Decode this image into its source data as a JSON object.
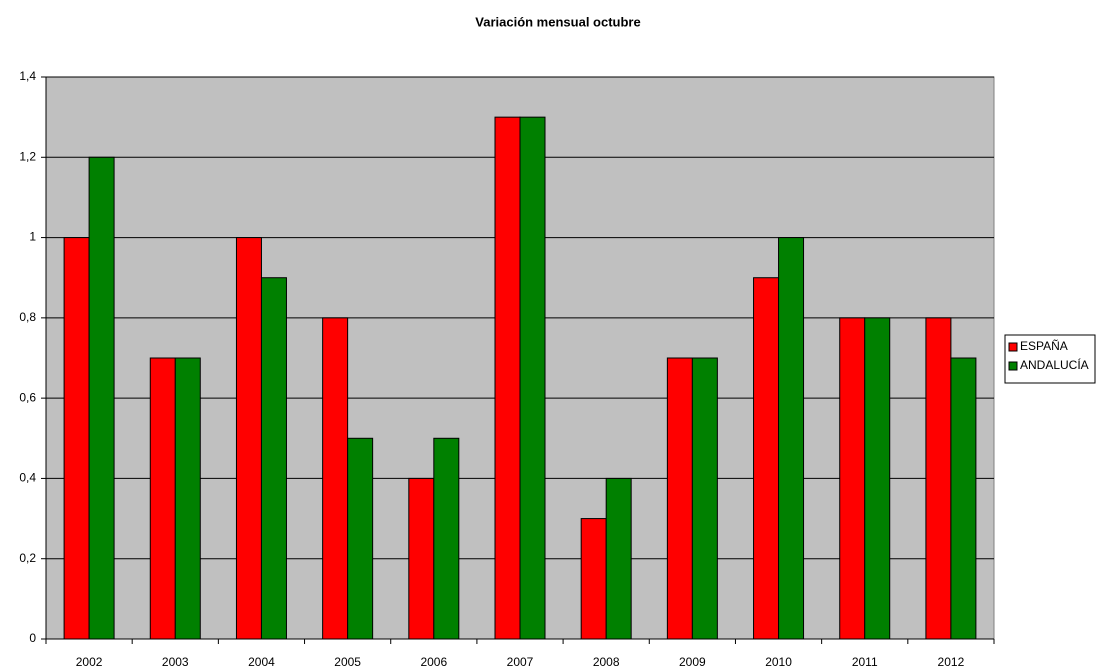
{
  "chart_data": {
    "type": "bar",
    "title": "Variación mensual octubre",
    "categories": [
      "2002",
      "2003",
      "2004",
      "2005",
      "2006",
      "2007",
      "2008",
      "2009",
      "2010",
      "2011",
      "2012"
    ],
    "series": [
      {
        "name": "ESPAÑA",
        "color": "#ff0000",
        "values": [
          1,
          0.7,
          1,
          0.8,
          0.4,
          1.3,
          0.3,
          0.7,
          0.9,
          0.8,
          0.8
        ]
      },
      {
        "name": "ANDALUCÍA",
        "color": "#008000",
        "values": [
          1.2,
          0.7,
          0.9,
          0.5,
          0.5,
          1.3,
          0.4,
          0.7,
          1,
          0.8,
          0.7
        ]
      }
    ],
    "ylim": [
      0,
      1.4
    ],
    "yticks": [
      0,
      {
        "value": 0.2,
        "label": "0,2"
      },
      {
        "value": 0.4,
        "label": "0,4"
      },
      {
        "value": 0.6,
        "label": "0,6"
      },
      {
        "value": 0.8,
        "label": "0,8"
      },
      1,
      {
        "value": 1.2,
        "label": "1,2"
      },
      {
        "value": 1.4,
        "label": "1,4"
      }
    ],
    "grid": true,
    "legend": "right",
    "plot_background": "#c0c0c0"
  }
}
